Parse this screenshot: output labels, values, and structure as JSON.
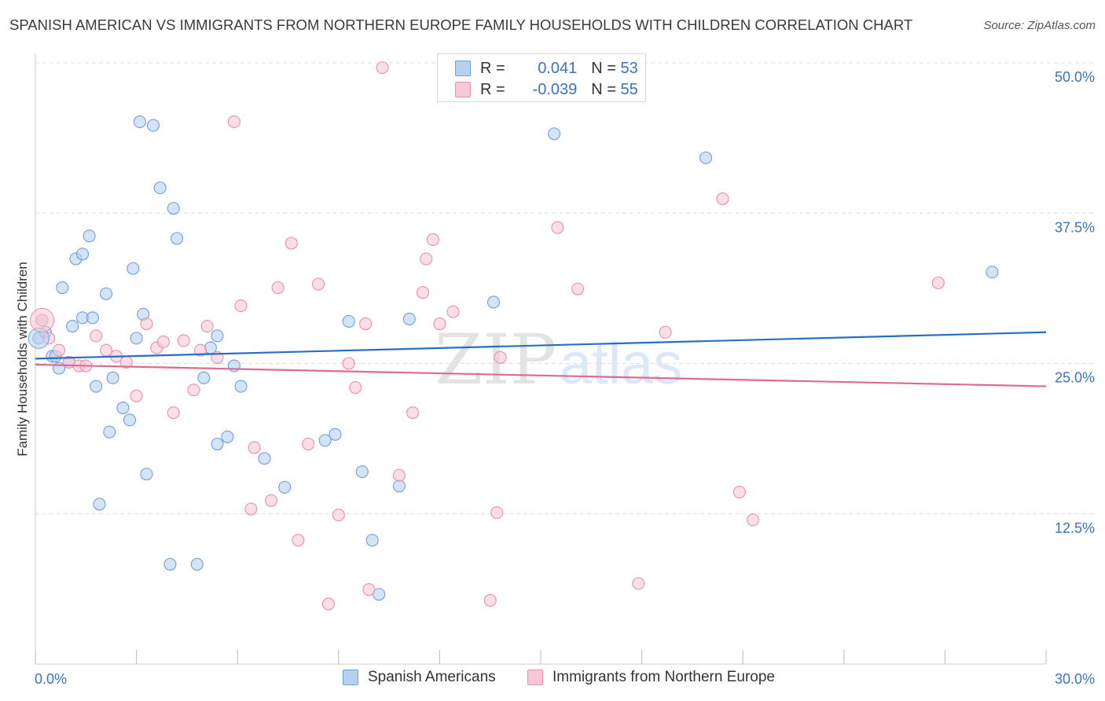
{
  "title": "SPANISH AMERICAN VS IMMIGRANTS FROM NORTHERN EUROPE FAMILY HOUSEHOLDS WITH CHILDREN CORRELATION CHART",
  "source": "Source: ZipAtlas.com",
  "legend": {
    "rows": [
      {
        "r_label": "R = ",
        "r_value": "0.041",
        "n_label": "N = ",
        "n_value": "53"
      },
      {
        "r_label": "R = ",
        "r_value": "-0.039",
        "n_label": "N = ",
        "n_value": "55"
      }
    ]
  },
  "bottom_legend": [
    "Spanish Americans",
    "Immigrants from Northern Europe"
  ],
  "colors": {
    "blue_fill": "#b8d0f0",
    "blue_stroke": "#6f9fdc",
    "blue_line": "#2a6dc8",
    "pink_fill": "#f8c8d6",
    "pink_stroke": "#e890ab",
    "pink_line": "#e06a96",
    "tick_label": "#3a72c4",
    "grid": "#dddddd"
  },
  "chart_data": {
    "type": "scatter",
    "title": "SPANISH AMERICAN VS IMMIGRANTS FROM NORTHERN EUROPE FAMILY HOUSEHOLDS WITH CHILDREN CORRELATION CHART",
    "xlabel": "",
    "ylabel": "Family Households with Children",
    "xlim": [
      0,
      30
    ],
    "ylim": [
      0,
      50
    ],
    "x_tick_labels": [
      "0.0%",
      "30.0%"
    ],
    "y_ticks": [
      12.5,
      25.0,
      37.5,
      50.0
    ],
    "y_tick_labels": [
      "12.5%",
      "25.0%",
      "37.5%",
      "50.0%"
    ],
    "grid": "horizontal dashed",
    "legend_position": "top-center",
    "series": [
      {
        "name": "Spanish Americans",
        "color": "#6f9fdc",
        "trend": {
          "y_at_x0": 25.4,
          "y_at_x30": 27.6
        },
        "points": [
          [
            0.1,
            27.1
          ],
          [
            0.2,
            28.6
          ],
          [
            0.3,
            27.6
          ],
          [
            0.5,
            25.6
          ],
          [
            0.6,
            25.6
          ],
          [
            0.7,
            24.6
          ],
          [
            0.8,
            31.3
          ],
          [
            1.0,
            25.1
          ],
          [
            1.1,
            28.1
          ],
          [
            1.2,
            33.7
          ],
          [
            1.4,
            28.8
          ],
          [
            1.4,
            34.1
          ],
          [
            1.6,
            35.6
          ],
          [
            1.7,
            28.8
          ],
          [
            1.8,
            23.1
          ],
          [
            1.9,
            13.3
          ],
          [
            2.1,
            30.8
          ],
          [
            2.2,
            19.3
          ],
          [
            2.3,
            23.8
          ],
          [
            2.6,
            21.3
          ],
          [
            2.8,
            20.3
          ],
          [
            2.9,
            32.9
          ],
          [
            3.0,
            27.1
          ],
          [
            3.1,
            45.1
          ],
          [
            3.2,
            29.1
          ],
          [
            3.3,
            15.8
          ],
          [
            3.5,
            44.8
          ],
          [
            3.7,
            39.6
          ],
          [
            4.0,
            8.3
          ],
          [
            4.1,
            37.9
          ],
          [
            4.2,
            35.4
          ],
          [
            4.8,
            8.3
          ],
          [
            5.0,
            23.8
          ],
          [
            5.2,
            26.3
          ],
          [
            5.4,
            18.3
          ],
          [
            5.4,
            27.3
          ],
          [
            5.7,
            18.9
          ],
          [
            5.9,
            24.8
          ],
          [
            6.1,
            23.1
          ],
          [
            6.8,
            17.1
          ],
          [
            7.4,
            14.7
          ],
          [
            8.6,
            18.6
          ],
          [
            8.9,
            19.1
          ],
          [
            9.3,
            28.5
          ],
          [
            9.7,
            16.0
          ],
          [
            10.0,
            10.3
          ],
          [
            10.2,
            5.8
          ],
          [
            10.8,
            14.8
          ],
          [
            11.1,
            28.7
          ],
          [
            13.6,
            30.1
          ],
          [
            15.4,
            44.1
          ],
          [
            19.9,
            42.1
          ],
          [
            28.4,
            32.6
          ]
        ]
      },
      {
        "name": "Immigrants from Northern Europe",
        "color": "#e890ab",
        "trend": {
          "y_at_x0": 24.9,
          "y_at_x30": 23.1
        },
        "points": [
          [
            0.2,
            28.6
          ],
          [
            0.4,
            27.1
          ],
          [
            0.7,
            26.1
          ],
          [
            1.0,
            25.1
          ],
          [
            1.3,
            24.8
          ],
          [
            1.5,
            24.8
          ],
          [
            1.8,
            27.3
          ],
          [
            2.1,
            26.1
          ],
          [
            2.4,
            25.6
          ],
          [
            2.7,
            25.1
          ],
          [
            3.0,
            22.3
          ],
          [
            3.3,
            28.3
          ],
          [
            3.6,
            26.3
          ],
          [
            3.8,
            26.8
          ],
          [
            4.1,
            20.9
          ],
          [
            4.4,
            26.9
          ],
          [
            4.7,
            22.8
          ],
          [
            4.9,
            26.1
          ],
          [
            5.1,
            28.1
          ],
          [
            5.4,
            25.5
          ],
          [
            5.9,
            45.1
          ],
          [
            6.1,
            29.8
          ],
          [
            6.4,
            12.9
          ],
          [
            6.5,
            18.0
          ],
          [
            7.0,
            13.6
          ],
          [
            7.2,
            31.3
          ],
          [
            7.6,
            35.0
          ],
          [
            7.8,
            10.3
          ],
          [
            8.1,
            18.3
          ],
          [
            8.4,
            31.6
          ],
          [
            8.7,
            5.0
          ],
          [
            9.0,
            12.4
          ],
          [
            9.3,
            25.0
          ],
          [
            9.5,
            23.0
          ],
          [
            9.8,
            28.3
          ],
          [
            9.9,
            6.2
          ],
          [
            10.3,
            49.6
          ],
          [
            10.8,
            15.7
          ],
          [
            11.2,
            20.9
          ],
          [
            11.5,
            30.9
          ],
          [
            11.6,
            33.7
          ],
          [
            11.8,
            35.3
          ],
          [
            12.0,
            28.3
          ],
          [
            12.4,
            29.3
          ],
          [
            13.5,
            5.3
          ],
          [
            13.7,
            12.6
          ],
          [
            13.8,
            25.5
          ],
          [
            15.5,
            36.3
          ],
          [
            16.1,
            31.2
          ],
          [
            17.9,
            6.7
          ],
          [
            18.7,
            27.6
          ],
          [
            20.4,
            38.7
          ],
          [
            20.9,
            14.3
          ],
          [
            21.3,
            12.0
          ],
          [
            26.8,
            31.7
          ]
        ]
      }
    ]
  }
}
